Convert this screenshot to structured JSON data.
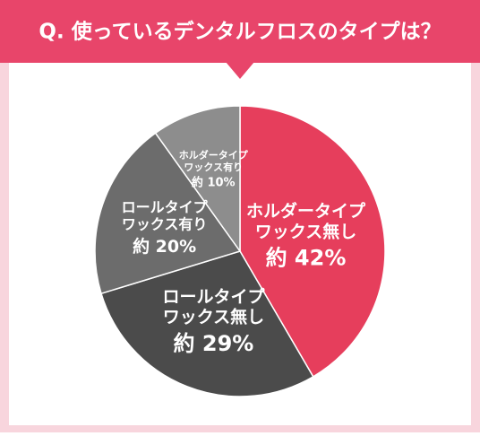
{
  "chart_data": {
    "type": "pie",
    "title": "Q. 使っているデンタルフロスのタイプは？",
    "categories": [
      "ホルダータイプ\nワックス無し",
      "ロールタイプ\nワックス無し",
      "ロールタイプ\nワックス有り",
      "ホルダータイプ\nワックス有り"
    ],
    "values": [
      42,
      29,
      20,
      10
    ],
    "value_labels": [
      "約 42%",
      "約 29%",
      "約 20%",
      "約 10%"
    ],
    "colors": [
      "#e63e5c",
      "#4b4b4b",
      "#6c6c6c",
      "#8d8d8d"
    ]
  }
}
